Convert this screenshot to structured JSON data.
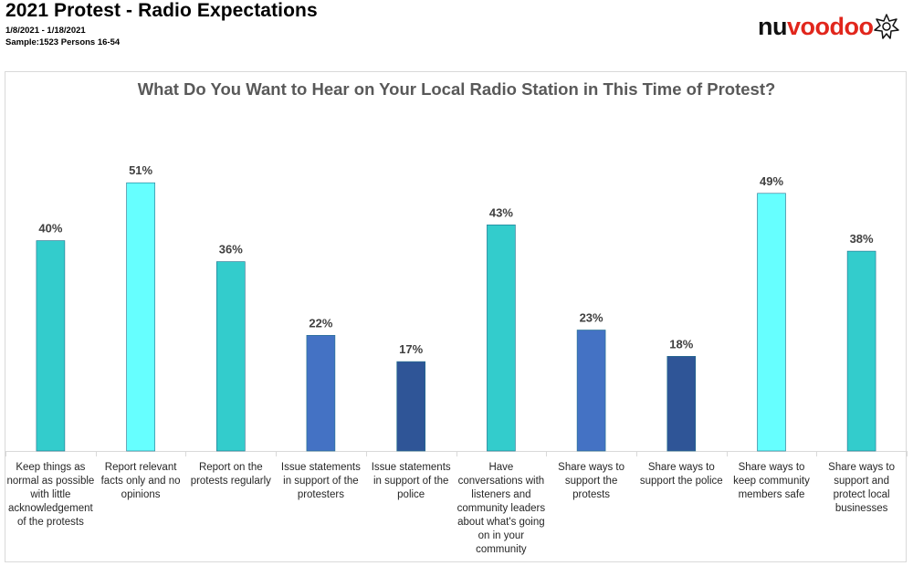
{
  "header": {
    "title": "2021 Protest - Radio Expectations",
    "dates": "1/8/2021 - 1/18/2021",
    "sample": "Sample:1523 Persons 16-54"
  },
  "logo": {
    "part1": "nu",
    "part2": "voodoo",
    "mark": "star-icon",
    "color_accent": "#e1261c"
  },
  "chart_data": {
    "type": "bar",
    "title": "What Do You Want to Hear on Your Local Radio Station in This Time of Protest?",
    "categories": [
      "Keep things as normal as possible with little acknowledgement of the protests",
      "Report relevant facts only and no opinions",
      "Report on the protests regularly",
      "Issue statements in support of the protesters",
      "Issue statements in support of the police",
      "Have conversations with listeners and community leaders about what's going on in your community",
      "Share ways to support the protests",
      "Share ways to support the police",
      "Share ways to keep community members safe",
      "Share ways to support and protect local businesses"
    ],
    "values": [
      40,
      51,
      36,
      22,
      17,
      43,
      23,
      18,
      49,
      38
    ],
    "value_labels": [
      "40%",
      "51%",
      "36%",
      "22%",
      "17%",
      "43%",
      "23%",
      "18%",
      "49%",
      "38%"
    ],
    "colors": [
      "#33cccc",
      "#66ffff",
      "#33cccc",
      "#4472c4",
      "#2f5597",
      "#33cccc",
      "#4472c4",
      "#2f5597",
      "#66ffff",
      "#33cccc"
    ],
    "ylim": [
      0,
      60
    ],
    "grid": false,
    "legend": "none"
  }
}
